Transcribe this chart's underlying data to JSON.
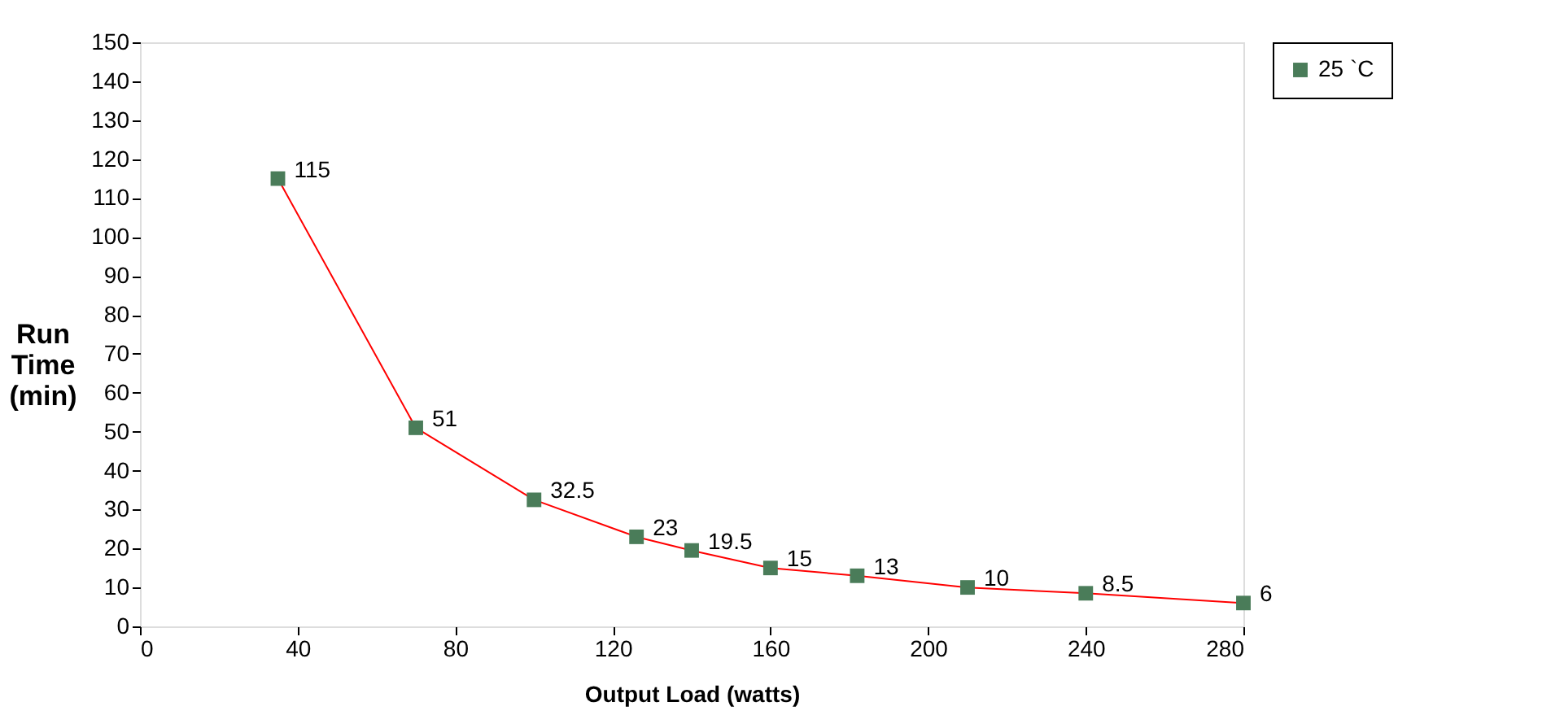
{
  "chart_data": {
    "type": "line",
    "xlabel": "Output Load (watts)",
    "ylabel": "Run Time (min)",
    "x": [
      35,
      70,
      100,
      126,
      140,
      160,
      182,
      210,
      240,
      280
    ],
    "series": [
      {
        "color": "#ff0000",
        "values": [
          115,
          51,
          32.5,
          23,
          19.5,
          15,
          13,
          10,
          8.5,
          6
        ]
      },
      {
        "type": "scatter",
        "name": "25 `C",
        "color": "#4a7c59",
        "marker": "square",
        "values": [
          115,
          51,
          32.5,
          23,
          19.5,
          15,
          13,
          10,
          8.5,
          6
        ],
        "value_labels": [
          "115",
          "51",
          "32.5",
          "23",
          "19.5",
          "15",
          "13",
          "10",
          "8.5",
          "6"
        ]
      }
    ],
    "xlim": [
      0,
      280
    ],
    "xticks": [
      0,
      40,
      80,
      120,
      160,
      200,
      240,
      280
    ],
    "ylim": [
      0,
      150
    ],
    "yticks": [
      0,
      10,
      20,
      30,
      40,
      50,
      60,
      70,
      80,
      90,
      100,
      110,
      120,
      130,
      140,
      150
    ],
    "grid": false,
    "legend": "right"
  }
}
